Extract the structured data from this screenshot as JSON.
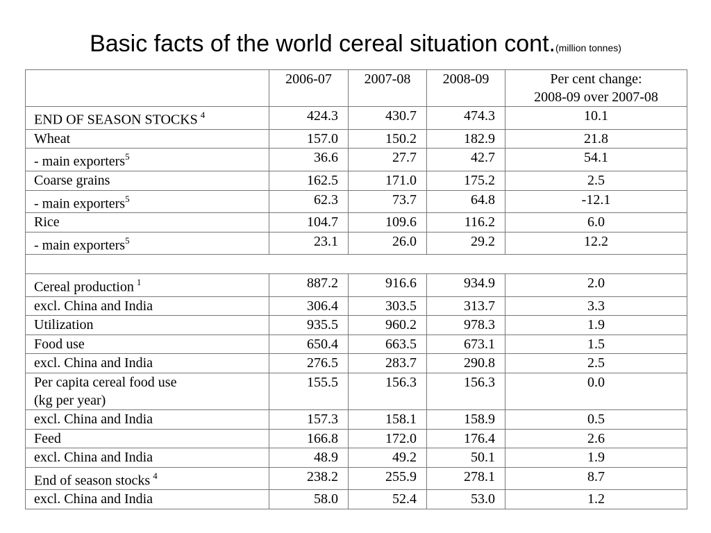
{
  "title": {
    "main": "Basic facts of the world cereal situation cont.",
    "subtitle": "(million tonnes)"
  },
  "table": {
    "columns": [
      "",
      "2006-07",
      "2007-08",
      "2008-09",
      "Per cent change:",
      "2008-09 over 2007-08"
    ],
    "rows": [
      {
        "label": "END OF SEASON STOCKS",
        "note": "4",
        "v": [
          "424.3",
          "430.7",
          "474.3",
          "10.1"
        ]
      },
      {
        "label": "Wheat",
        "note": "",
        "v": [
          "157.0",
          "150.2",
          "182.9",
          "21.8"
        ]
      },
      {
        "label": "- main exporters",
        "note": "5",
        "v": [
          "36.6",
          "27.7",
          "42.7",
          "54.1"
        ]
      },
      {
        "label": "Coarse grains",
        "note": "",
        "v": [
          "162.5",
          "171.0",
          "175.2",
          "2.5"
        ]
      },
      {
        "label": "- main exporters",
        "note": "5",
        "v": [
          "62.3",
          "73.7",
          "64.8",
          "-12.1"
        ]
      },
      {
        "label": "Rice",
        "note": "",
        "v": [
          "104.7",
          "109.6",
          "116.2",
          "6.0"
        ]
      },
      {
        "label": "- main exporters",
        "note": "5",
        "v": [
          "23.1",
          "26.0",
          "29.2",
          "12.2"
        ]
      },
      {
        "label": "Cereal production",
        "note": "1",
        "v": [
          "887.2",
          "916.6",
          "934.9",
          "2.0"
        ]
      },
      {
        "label": "excl. China and India",
        "note": "",
        "v": [
          "306.4",
          "303.5",
          "313.7",
          "3.3"
        ]
      },
      {
        "label": "Utilization",
        "note": "",
        "v": [
          "935.5",
          "960.2",
          "978.3",
          "1.9"
        ]
      },
      {
        "label": "Food use",
        "note": "",
        "v": [
          "650.4",
          "663.5",
          "673.1",
          "1.5"
        ]
      },
      {
        "label": "excl. China and India",
        "note": "",
        "v": [
          "276.5",
          "283.7",
          "290.8",
          "2.5"
        ]
      },
      {
        "label": "Per capita cereal food use",
        "label2": "(kg per year)",
        "note": "",
        "v": [
          "155.5",
          "156.3",
          "156.3",
          "0.0"
        ]
      },
      {
        "label": "excl. China and India",
        "note": "",
        "v": [
          "157.3",
          "158.1",
          "158.9",
          "0.5"
        ]
      },
      {
        "label": "Feed",
        "note": "",
        "v": [
          "166.8",
          "172.0",
          "176.4",
          "2.6"
        ]
      },
      {
        "label": "excl. China and India",
        "note": "",
        "v": [
          "48.9",
          "49.2",
          "50.1",
          "1.9"
        ]
      },
      {
        "label": "End of season stocks",
        "note": "4",
        "v": [
          "238.2",
          "255.9",
          "278.1",
          "8.7"
        ]
      },
      {
        "label": "excl. China and India",
        "note": "",
        "v": [
          "58.0",
          "52.4",
          "53.0",
          "1.2"
        ]
      }
    ]
  }
}
